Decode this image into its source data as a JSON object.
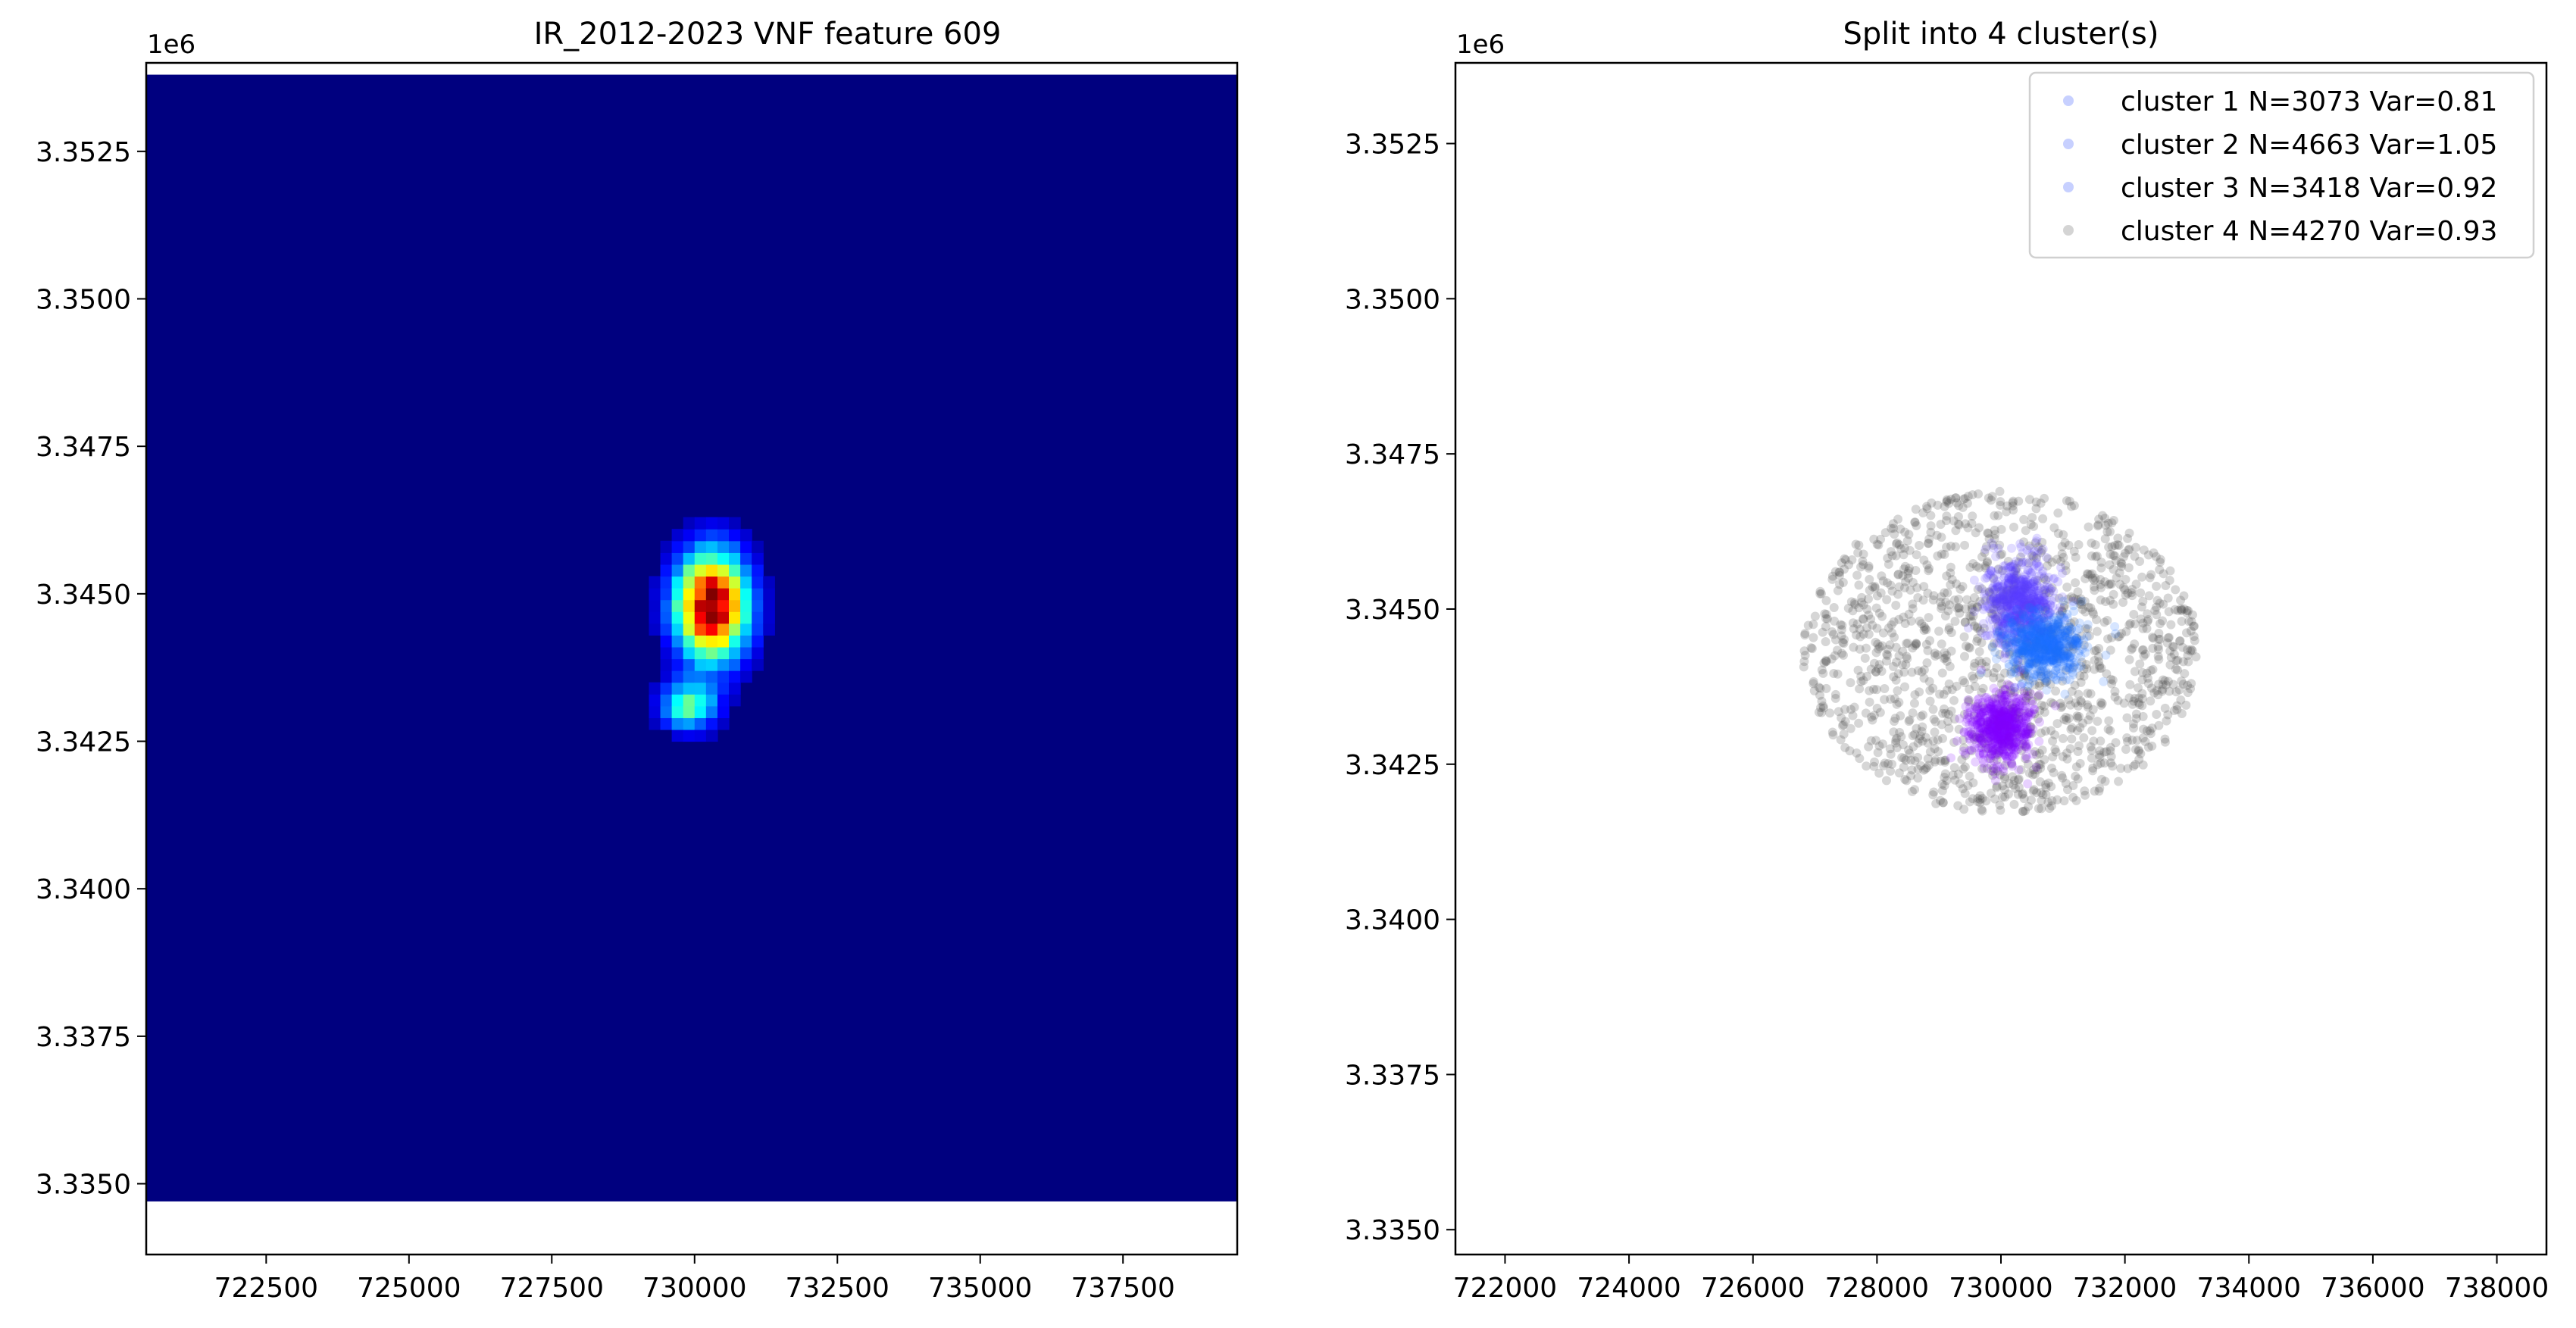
{
  "chart_data": [
    {
      "type": "heatmap",
      "title": "IR_2012-2023 VNF feature 609",
      "xlabel": "",
      "ylabel": "",
      "x_range": [
        720400,
        739500
      ],
      "y_range": [
        3333800,
        3354000
      ],
      "xticks": [
        "722500",
        "725000",
        "727500",
        "730000",
        "732500",
        "735000",
        "737500"
      ],
      "yticks": [
        "3.3350",
        "3.3375",
        "3.3400",
        "3.3425",
        "3.3450",
        "3.3475",
        "3.3500",
        "3.3525"
      ],
      "y_offset_label": "1e6",
      "grid": false,
      "colormap": "jet",
      "background_color": "#00007f",
      "extent": {
        "x": [
          720400,
          739500
        ],
        "y": [
          3334700,
          3353800
        ]
      },
      "hotspots": [
        {
          "x": 730300,
          "y": 3344800,
          "sx": 450,
          "sy": 650,
          "intensity": 1.0
        },
        {
          "x": 729900,
          "y": 3343100,
          "sx": 350,
          "sy": 300,
          "intensity": 0.45
        }
      ]
    },
    {
      "type": "scatter",
      "title": "Split into 4 cluster(s)",
      "xlabel": "",
      "ylabel": "",
      "x_range": [
        721200,
        738800
      ],
      "y_range": [
        3334600,
        3353800
      ],
      "xticks": [
        "722000",
        "724000",
        "726000",
        "728000",
        "730000",
        "732000",
        "734000",
        "736000",
        "738000"
      ],
      "yticks": [
        "3.3350",
        "3.3375",
        "3.3400",
        "3.3425",
        "3.3450",
        "3.3475",
        "3.3500",
        "3.3525"
      ],
      "y_offset_label": "1e6",
      "grid": false,
      "legend_position": "top-right",
      "series": [
        {
          "name": "cluster 1 N=3073 Var=0.81",
          "color": "#7f00ff",
          "center": [
            730000,
            3343100
          ],
          "spread": [
            500,
            550
          ]
        },
        {
          "name": "cluster 2 N=4663 Var=1.05",
          "color": "#1e6fff",
          "center": [
            730700,
            3344400
          ],
          "spread": [
            600,
            500
          ]
        },
        {
          "name": "cluster 3 N=3418 Var=0.92",
          "color": "#5a3cff",
          "center": [
            730300,
            3345100
          ],
          "spread": [
            550,
            700
          ]
        },
        {
          "name": "cluster 4 N=4270 Var=0.93",
          "color": "#444444",
          "center": [
            730000,
            3344300
          ],
          "spread": [
            3200,
            2600
          ]
        }
      ]
    }
  ]
}
